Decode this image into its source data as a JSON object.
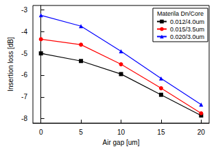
{
  "chart_data": {
    "type": "line",
    "x_label": "Air gap [um]",
    "y_label": "Insertion loss [dB]",
    "legend_title": "Materila Dn/Core",
    "x": [
      0,
      5,
      10,
      15,
      20
    ],
    "series": [
      {
        "name": "0.012/4.0um",
        "color": "#000000",
        "marker": "square",
        "values": [
          -5.0,
          -5.35,
          -5.95,
          -6.9,
          -7.85
        ]
      },
      {
        "name": "0.015/3.5um",
        "color": "#ff0000",
        "marker": "circle",
        "values": [
          -4.35,
          -4.6,
          -5.5,
          -6.6,
          -7.75
        ]
      },
      {
        "name": "0.020/3.0um",
        "color": "#0000ff",
        "marker": "triangle",
        "values": [
          -3.25,
          -3.75,
          -4.9,
          -6.15,
          -7.35
        ]
      }
    ],
    "xlim": [
      -1,
      21
    ],
    "xticks": [
      0,
      5,
      10,
      15,
      20
    ],
    "ylim": [
      -8.2,
      -2.8
    ],
    "yticks": [
      -8,
      -7,
      -6,
      -5,
      -4,
      -3
    ],
    "grid": false,
    "legend": "upper right"
  }
}
